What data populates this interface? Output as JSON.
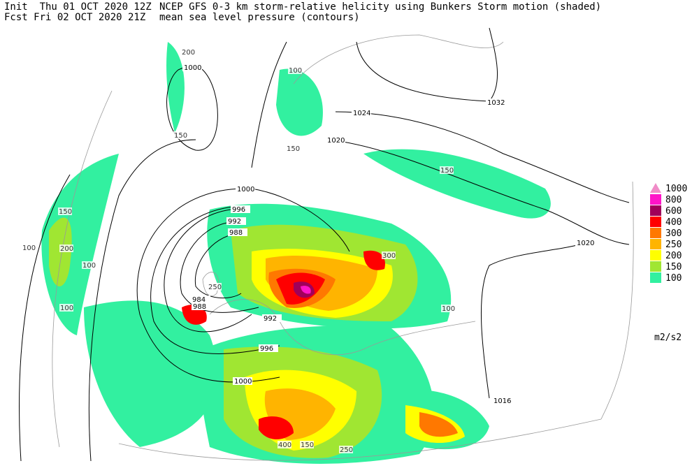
{
  "header": {
    "init": "Init  Thu 01 OCT 2020 12Z",
    "fcst": "Fcst Fri 02 OCT 2020 21Z",
    "title": "NCEP GFS 0-3 km storm-relative helicity using Bunkers Storm motion (shaded)",
    "subtitle": "mean sea level pressure (contours)"
  },
  "legend": {
    "units": "m2/s2",
    "items": [
      {
        "label": "1000",
        "color": "#f08cc8"
      },
      {
        "label": "800",
        "color": "#ff14c8"
      },
      {
        "label": "600",
        "color": "#a0005a"
      },
      {
        "label": "400",
        "color": "#ff0000"
      },
      {
        "label": "300",
        "color": "#ff7800"
      },
      {
        "label": "250",
        "color": "#ffb400"
      },
      {
        "label": "200",
        "color": "#ffff00"
      },
      {
        "label": "150",
        "color": "#a0e632"
      },
      {
        "label": "100",
        "color": "#32f0a0"
      }
    ]
  },
  "contour_labels": [
    "1000",
    "1032",
    "1024",
    "1020",
    "1000",
    "996",
    "992",
    "988",
    "984",
    "988",
    "992",
    "996",
    "1000",
    "1020",
    "1016"
  ],
  "shading_labels": [
    "100",
    "100",
    "100",
    "100",
    "100",
    "150",
    "150",
    "150",
    "150",
    "200",
    "200",
    "250",
    "300",
    "400",
    "250",
    "150"
  ]
}
